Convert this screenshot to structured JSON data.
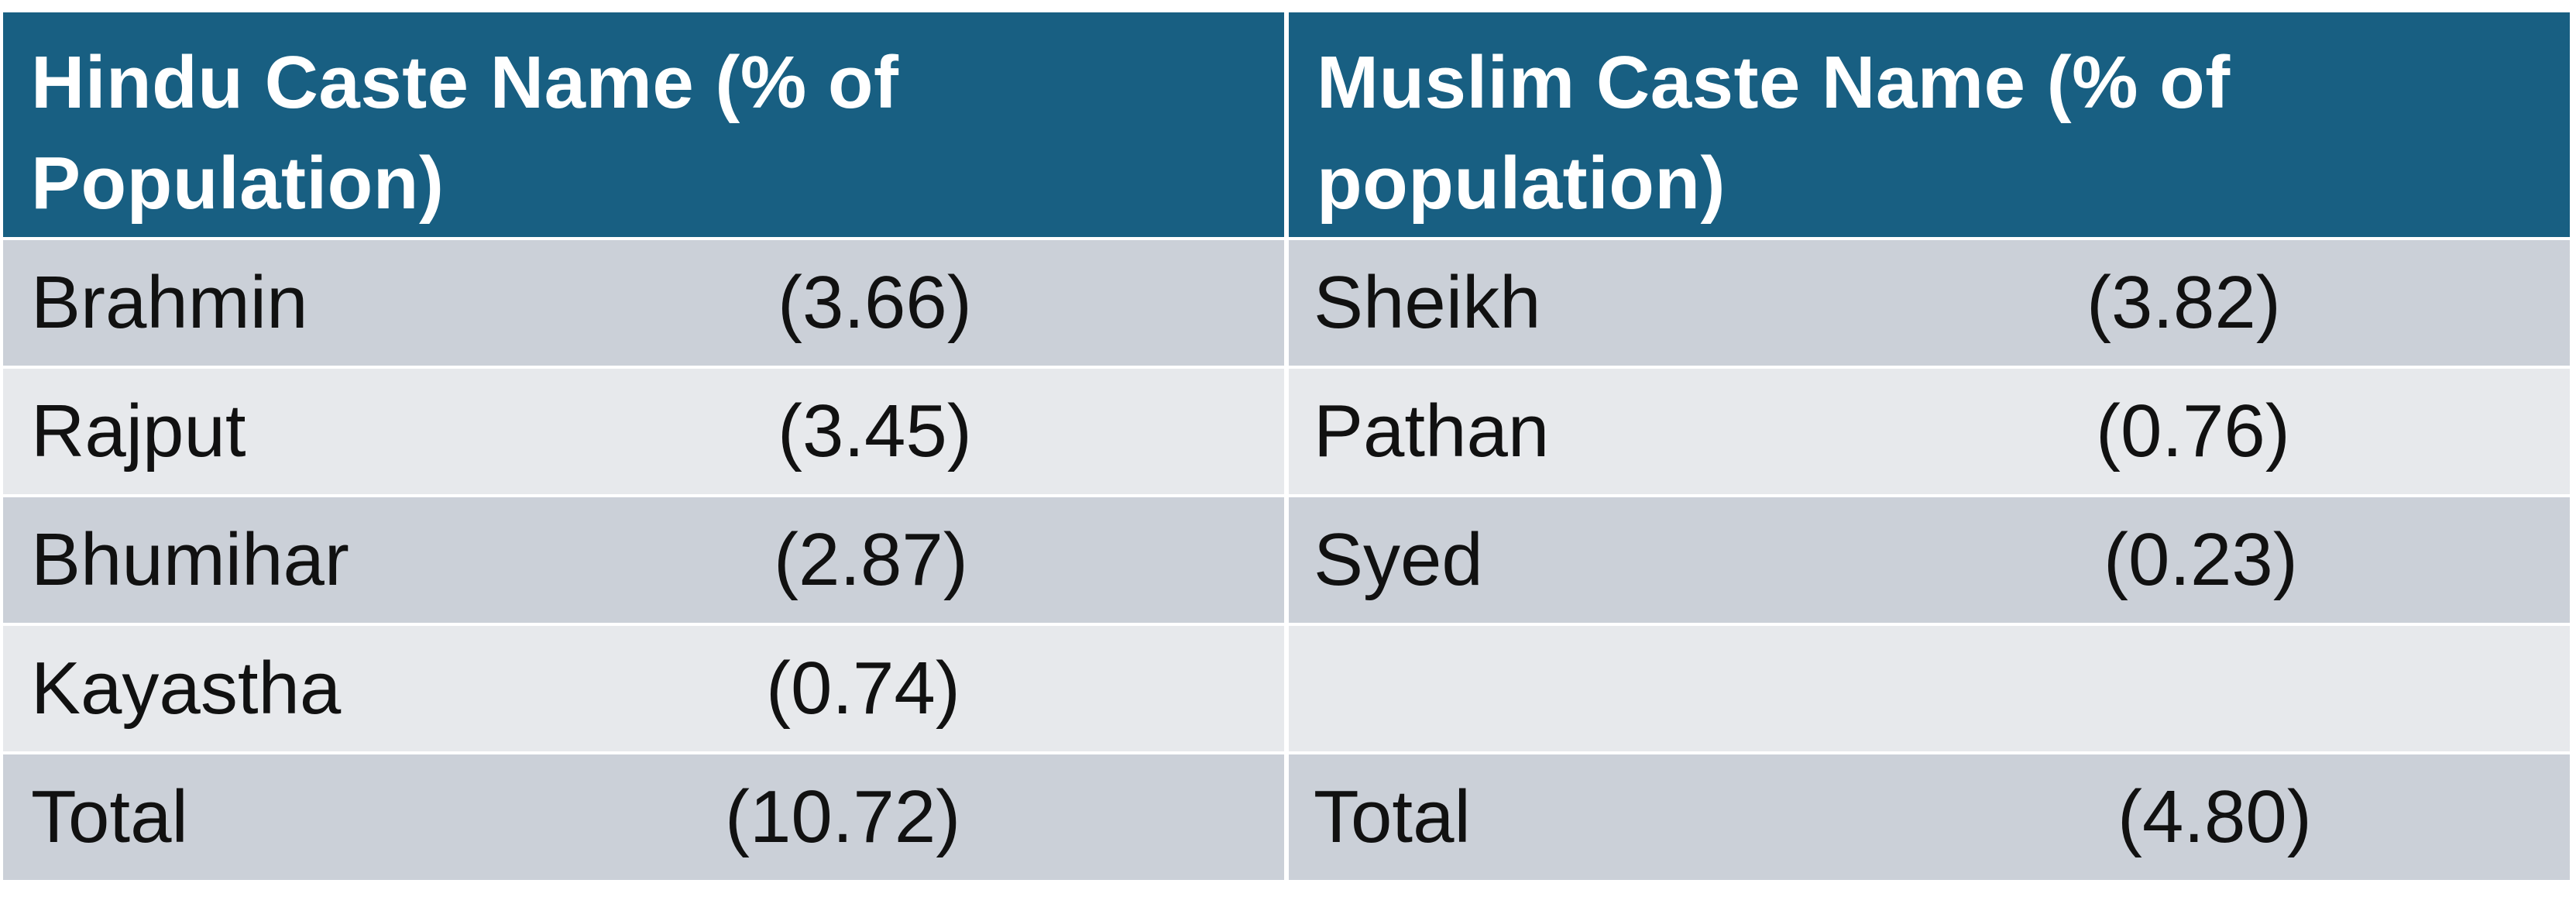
{
  "table": {
    "headers": [
      "Hindu Caste Name (% of Population)",
      "Muslim Caste Name (% of population)"
    ],
    "rows": [
      {
        "hindu": {
          "name": "Brahmin",
          "value": "(3.66)"
        },
        "muslim": {
          "name": "Sheikh",
          "value": "(3.82)"
        }
      },
      {
        "hindu": {
          "name": "Rajput",
          "value": "(3.45)"
        },
        "muslim": {
          "name": "Pathan",
          "value": "(0.76)"
        }
      },
      {
        "hindu": {
          "name": "Bhumihar",
          "value": "(2.87)"
        },
        "muslim": {
          "name": "Syed",
          "value": "(0.23)"
        }
      },
      {
        "hindu": {
          "name": "Kayastha",
          "value": "(0.74)"
        },
        "muslim": {
          "name": "",
          "value": ""
        }
      },
      {
        "hindu": {
          "name": "Total",
          "value": "(10.72)"
        },
        "muslim": {
          "name": "Total",
          "value": "(4.80)"
        }
      }
    ]
  },
  "colors": {
    "header_bg": "#185f82",
    "header_text": "#ffffff",
    "row_dark": "#cbd0d8",
    "row_light": "#e7e9ec"
  }
}
